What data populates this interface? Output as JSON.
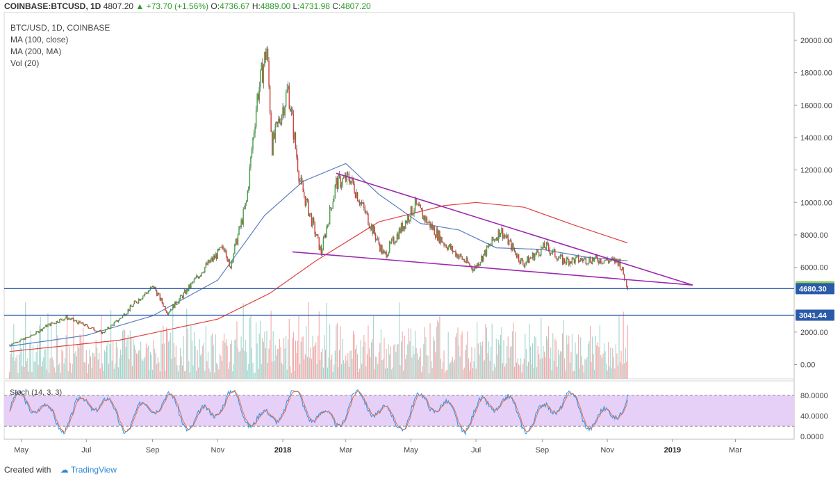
{
  "header": {
    "symbol": "COINBASE:BTCUSD, 1D",
    "last": "4807.20",
    "change": "+73.70 (+1.56%)",
    "open_label": "O:",
    "open": "4736.67",
    "high_label": "H:",
    "high": "4889.00",
    "low_label": "L:",
    "low": "4731.98",
    "close_label": "C:",
    "close": "4807.20"
  },
  "legend": {
    "title": "BTC/USD, 1D, COINBASE",
    "ma100": "MA (100, close)",
    "ma200": "MA (200, MA)",
    "vol": "Vol (20)"
  },
  "footer": {
    "created_with": "Created with",
    "brand": "TradingView"
  },
  "colors": {
    "up": "#26a69a",
    "down": "#ef5350",
    "ma100": "#5b7fbf",
    "ma200": "#e04040",
    "trendline": "#9c27b0",
    "hline": "#2a5aa8",
    "stoch_k": "#2196f3",
    "stoch_d": "#ef6c3b",
    "stoch_band": "#e6d0f7",
    "vol_up": "#9fd4cc",
    "vol_down": "#f4a6a6"
  },
  "chart_data": {
    "type": "candlestick",
    "symbol": "BTC/USD",
    "interval": "1D",
    "y_ticks": [
      "20000.00",
      "18000.00",
      "16000.00",
      "14000.00",
      "12000.00",
      "10000.00",
      "8000.00",
      "6000.00",
      "2000.00",
      "0.00"
    ],
    "x_ticks": [
      "May",
      "Jul",
      "Sep",
      "Nov",
      "2018",
      "Mar",
      "May",
      "Jul",
      "Sep",
      "Nov",
      "2019",
      "Mar"
    ],
    "price_tags": [
      {
        "label": "4807.20",
        "value": 4807.2,
        "style": "last"
      },
      {
        "label": "4680.30",
        "value": 4680.3,
        "style": "line"
      },
      {
        "label": "3041.44",
        "value": 3041.44,
        "style": "line"
      }
    ],
    "horizontal_lines": [
      4680.3,
      3041.44
    ],
    "price_path": [
      {
        "date": "2017-04-20",
        "price": 1220
      },
      {
        "date": "2017-05-10",
        "price": 1750
      },
      {
        "date": "2017-05-25",
        "price": 2400
      },
      {
        "date": "2017-06-12",
        "price": 2900
      },
      {
        "date": "2017-06-25",
        "price": 2550
      },
      {
        "date": "2017-07-16",
        "price": 1950
      },
      {
        "date": "2017-08-01",
        "price": 2800
      },
      {
        "date": "2017-08-20",
        "price": 4100
      },
      {
        "date": "2017-09-02",
        "price": 4800
      },
      {
        "date": "2017-09-15",
        "price": 3200
      },
      {
        "date": "2017-10-01",
        "price": 4400
      },
      {
        "date": "2017-10-20",
        "price": 6000
      },
      {
        "date": "2017-11-08",
        "price": 7300
      },
      {
        "date": "2017-11-12",
        "price": 5900
      },
      {
        "date": "2017-11-28",
        "price": 10000
      },
      {
        "date": "2017-12-08",
        "price": 16500
      },
      {
        "date": "2017-12-17",
        "price": 19500
      },
      {
        "date": "2017-12-22",
        "price": 13500
      },
      {
        "date": "2018-01-06",
        "price": 17000
      },
      {
        "date": "2018-01-17",
        "price": 11300
      },
      {
        "date": "2018-02-06",
        "price": 6900
      },
      {
        "date": "2018-02-20",
        "price": 11200
      },
      {
        "date": "2018-03-05",
        "price": 11500
      },
      {
        "date": "2018-04-06",
        "price": 6700
      },
      {
        "date": "2018-05-05",
        "price": 9800
      },
      {
        "date": "2018-06-01",
        "price": 7500
      },
      {
        "date": "2018-06-29",
        "price": 5900
      },
      {
        "date": "2018-07-24",
        "price": 8300
      },
      {
        "date": "2018-08-14",
        "price": 6200
      },
      {
        "date": "2018-09-04",
        "price": 7300
      },
      {
        "date": "2018-09-20",
        "price": 6400
      },
      {
        "date": "2018-10-20",
        "price": 6500
      },
      {
        "date": "2018-11-12",
        "price": 6350
      },
      {
        "date": "2018-11-20",
        "price": 4800
      }
    ],
    "ma100_path": [
      {
        "date": "2017-04-20",
        "price": 1130
      },
      {
        "date": "2017-07-01",
        "price": 1800
      },
      {
        "date": "2017-09-01",
        "price": 3000
      },
      {
        "date": "2017-11-01",
        "price": 5200
      },
      {
        "date": "2017-12-15",
        "price": 9200
      },
      {
        "date": "2018-01-20",
        "price": 11300
      },
      {
        "date": "2018-03-01",
        "price": 12400
      },
      {
        "date": "2018-04-01",
        "price": 10500
      },
      {
        "date": "2018-05-10",
        "price": 8700
      },
      {
        "date": "2018-06-15",
        "price": 8300
      },
      {
        "date": "2018-07-20",
        "price": 7200
      },
      {
        "date": "2018-09-01",
        "price": 7100
      },
      {
        "date": "2018-10-15",
        "price": 6600
      },
      {
        "date": "2018-11-20",
        "price": 6400
      }
    ],
    "ma200_path": [
      {
        "date": "2017-04-20",
        "price": 800
      },
      {
        "date": "2017-08-01",
        "price": 1500
      },
      {
        "date": "2017-11-01",
        "price": 2800
      },
      {
        "date": "2017-12-20",
        "price": 4400
      },
      {
        "date": "2018-02-01",
        "price": 6400
      },
      {
        "date": "2018-04-01",
        "price": 8800
      },
      {
        "date": "2018-06-01",
        "price": 9800
      },
      {
        "date": "2018-07-01",
        "price": 10000
      },
      {
        "date": "2018-08-15",
        "price": 9700
      },
      {
        "date": "2018-10-01",
        "price": 8600
      },
      {
        "date": "2018-11-20",
        "price": 7500
      }
    ],
    "trendlines": [
      {
        "from": {
          "date": "2018-02-20",
          "price": 11800
        },
        "to": {
          "date": "2019-01-20",
          "price": 4900
        }
      },
      {
        "from": {
          "date": "2018-01-10",
          "price": 6950
        },
        "to": {
          "date": "2019-01-20",
          "price": 4900
        }
      }
    ],
    "indicator": {
      "name": "Stoch (14, 3, 3)",
      "y_ticks": [
        "80.0000",
        "40.0000",
        "0.0000"
      ],
      "band": [
        20,
        80
      ]
    }
  }
}
